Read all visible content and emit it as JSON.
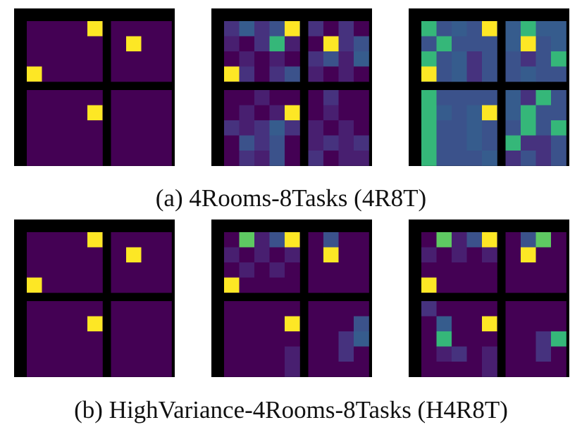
{
  "figure": {
    "rows": [
      {
        "caption": "(a) 4Rooms-8Tasks (4R8T)",
        "panels": [
          {
            "colors": [
              "#440154",
              "#440154",
              "#440154",
              "#440154",
              "#440154",
              "#440154",
              "#440154",
              "#440154",
              "#440154",
              "#440154",
              "#440154",
              "#440154",
              "#440154",
              "#440154",
              "#440154",
              "#440154",
              "#440154",
              "#440154",
              "#440154",
              "#440154",
              "#440154",
              "#440154",
              "#440154",
              "#440154",
              "#440154",
              "#440154",
              "#440154",
              "#440154",
              "#440154",
              "#440154",
              "#440154",
              "#440154",
              "#440154",
              "#440154",
              "#440154",
              "#440154",
              "#440154",
              "#440154",
              "#440154",
              "#440154",
              "#440154",
              "#440154",
              "#440154",
              "#440154",
              "#440154",
              "#440154",
              "#440154",
              "#440154",
              "#440154",
              "#440154",
              "#440154",
              "#440154",
              "#440154",
              "#440154",
              "#440154",
              "#440154",
              "#440154",
              "#440154",
              "#440154",
              "#440154",
              "#440154",
              "#440154",
              "#440154",
              "#440154",
              "#440154",
              "#440154",
              "#440154",
              "#440154",
              "#440154",
              "#440154",
              "#440154",
              "#440154",
              "#440154",
              "#440154",
              "#440154",
              "#440154",
              "#440154",
              "#440154",
              "#440154",
              "#440154",
              "#440154"
            ],
            "goals": [
              [
                0,
                4
              ],
              [
                1,
                6
              ],
              [
                3,
                0
              ],
              [
                5,
                4
              ]
            ]
          },
          {
            "colors": [
              "#46327e",
              "#365c8d",
              "#46327e",
              "#3b528b",
              "#365c8d",
              "#46327e",
              "#440154",
              "#46327e",
              "#440154",
              "#481f70",
              "#440154",
              "#46327e",
              "#35b779",
              "#481f70",
              "#440154",
              "#3b528b",
              "#46327e",
              "#3b528b",
              "#440154",
              "#481f70",
              "#440154",
              "#481f70",
              "#440154",
              "#46327e",
              "#3b528b",
              "#481f70",
              "#365c8d",
              "#481f70",
              "#46327e",
              "#440154",
              "#46327e",
              "#3b528b",
              "#481f70",
              "#440154",
              "#481f70",
              "#440154",
              "#440154",
              "#440154",
              "#481f70",
              "#440154",
              "#440154",
              "#440154",
              "#46327e",
              "#440154",
              "#440154",
              "#440154",
              "#481f70",
              "#440154",
              "#481f70",
              "#46327e",
              "#440154",
              "#481f70",
              "#440154",
              "#440154",
              "#46327e",
              "#481f70",
              "#46327e",
              "#365c8d",
              "#46327e",
              "#481f70",
              "#440154",
              "#481f70",
              "#440154",
              "#440154",
              "#3b528b",
              "#46327e",
              "#3b528b",
              "#440154",
              "#481f70",
              "#46327e",
              "#481f70",
              "#46327e",
              "#440154",
              "#46327e",
              "#481f70",
              "#3b528b",
              "#440154",
              "#46327e",
              "#440154",
              "#481f70",
              "#481f70"
            ],
            "goals": [
              [
                0,
                4
              ],
              [
                1,
                6
              ],
              [
                3,
                0
              ],
              [
                5,
                4
              ]
            ]
          },
          {
            "colors": [
              "#35b779",
              "#3b528b",
              "#365c8d",
              "#3b528b",
              "#3b528b",
              "#365c8d",
              "#35b779",
              "#365c8d",
              "#365c8d",
              "#3b528b",
              "#35b779",
              "#3b528b",
              "#3b528b",
              "#3b528b",
              "#365c8d",
              "#3b528b",
              "#3b528b",
              "#365c8d",
              "#35b779",
              "#3b528b",
              "#365c8d",
              "#46327e",
              "#3b528b",
              "#3b528b",
              "#46327e",
              "#3b528b",
              "#35b779",
              "#3b528b",
              "#3b528b",
              "#365c8d",
              "#46327e",
              "#3b528b",
              "#3b528b",
              "#365c8d",
              "#3b528b",
              "#3b528b",
              "#35b779",
              "#3b528b",
              "#3b528b",
              "#3b528b",
              "#3b528b",
              "#365c8d",
              "#46327e",
              "#35b779",
              "#3b528b",
              "#35b779",
              "#365c8d",
              "#3b528b",
              "#365c8d",
              "#3b528b",
              "#365c8d",
              "#35b779",
              "#3b528b",
              "#3b528b",
              "#35b779",
              "#3b528b",
              "#3b528b",
              "#365c8d",
              "#3b528b",
              "#3b528b",
              "#35b779",
              "#3b528b",
              "#35b779",
              "#35b779",
              "#3b528b",
              "#3b528b",
              "#365c8d",
              "#3b528b",
              "#35b779",
              "#46327e",
              "#46327e",
              "#3b528b",
              "#35b779",
              "#3b528b",
              "#3b528b",
              "#3b528b",
              "#365c8d",
              "#46327e",
              "#3b528b",
              "#46327e",
              "#3b528b"
            ],
            "goals": [
              [
                0,
                4
              ],
              [
                1,
                6
              ],
              [
                3,
                0
              ],
              [
                5,
                4
              ]
            ]
          }
        ]
      },
      {
        "caption": "(b) HighVariance-4Rooms-8Tasks (H4R8T)",
        "panels": [
          {
            "colors": [
              "#440154",
              "#440154",
              "#440154",
              "#440154",
              "#440154",
              "#440154",
              "#440154",
              "#440154",
              "#440154",
              "#440154",
              "#440154",
              "#440154",
              "#440154",
              "#440154",
              "#440154",
              "#440154",
              "#440154",
              "#440154",
              "#440154",
              "#440154",
              "#440154",
              "#440154",
              "#440154",
              "#440154",
              "#440154",
              "#440154",
              "#440154",
              "#440154",
              "#440154",
              "#440154",
              "#440154",
              "#440154",
              "#440154",
              "#440154",
              "#440154",
              "#440154",
              "#440154",
              "#440154",
              "#440154",
              "#440154",
              "#440154",
              "#440154",
              "#440154",
              "#440154",
              "#440154",
              "#440154",
              "#440154",
              "#440154",
              "#440154",
              "#440154",
              "#440154",
              "#440154",
              "#440154",
              "#440154",
              "#440154",
              "#440154",
              "#440154",
              "#440154",
              "#440154",
              "#440154",
              "#440154",
              "#440154",
              "#440154",
              "#440154",
              "#440154",
              "#440154",
              "#440154",
              "#440154",
              "#440154",
              "#440154",
              "#440154",
              "#440154",
              "#440154",
              "#440154",
              "#440154",
              "#440154",
              "#440154",
              "#440154",
              "#440154",
              "#440154",
              "#440154"
            ],
            "goals": [
              [
                0,
                4
              ],
              [
                1,
                6
              ],
              [
                3,
                0
              ],
              [
                5,
                4
              ]
            ]
          },
          {
            "colors": [
              "#440154",
              "#5ec962",
              "#481f70",
              "#3b528b",
              "#481f70",
              "#440154",
              "#3b528b",
              "#440154",
              "#440154",
              "#481f70",
              "#440154",
              "#481f70",
              "#440154",
              "#481f70",
              "#440154",
              "#440154",
              "#440154",
              "#440154",
              "#440154",
              "#481f70",
              "#440154",
              "#481f70",
              "#440154",
              "#440154",
              "#440154",
              "#440154",
              "#440154",
              "#440154",
              "#440154",
              "#440154",
              "#440154",
              "#440154",
              "#440154",
              "#440154",
              "#440154",
              "#440154",
              "#440154",
              "#440154",
              "#440154",
              "#440154",
              "#440154",
              "#440154",
              "#440154",
              "#440154",
              "#440154",
              "#440154",
              "#440154",
              "#440154",
              "#440154",
              "#46327e",
              "#440154",
              "#440154",
              "#440154",
              "#3b528b",
              "#440154",
              "#440154",
              "#440154",
              "#440154",
              "#440154",
              "#440154",
              "#440154",
              "#46327e",
              "#365c8d",
              "#440154",
              "#440154",
              "#440154",
              "#440154",
              "#481f70",
              "#440154",
              "#440154",
              "#46327e",
              "#440154",
              "#440154",
              "#440154",
              "#440154",
              "#440154",
              "#481f70",
              "#440154",
              "#440154",
              "#440154",
              "#440154"
            ],
            "goals": [
              [
                0,
                4
              ],
              [
                1,
                6
              ],
              [
                3,
                0
              ],
              [
                5,
                4
              ]
            ]
          },
          {
            "colors": [
              "#440154",
              "#5ec962",
              "#481f70",
              "#3b528b",
              "#481f70",
              "#440154",
              "#3b528b",
              "#5ec962",
              "#440154",
              "#481f70",
              "#440154",
              "#481f70",
              "#440154",
              "#481f70",
              "#440154",
              "#3b528b",
              "#440154",
              "#440154",
              "#440154",
              "#440154",
              "#440154",
              "#440154",
              "#440154",
              "#440154",
              "#440154",
              "#440154",
              "#440154",
              "#440154",
              "#440154",
              "#440154",
              "#440154",
              "#440154",
              "#440154",
              "#440154",
              "#440154",
              "#440154",
              "#46327e",
              "#440154",
              "#440154",
              "#440154",
              "#440154",
              "#440154",
              "#440154",
              "#440154",
              "#440154",
              "#440154",
              "#365c8d",
              "#440154",
              "#440154",
              "#440154",
              "#440154",
              "#440154",
              "#440154",
              "#440154",
              "#440154",
              "#35b779",
              "#440154",
              "#440154",
              "#440154",
              "#440154",
              "#440154",
              "#46327e",
              "#35b779",
              "#440154",
              "#481f70",
              "#46327e",
              "#440154",
              "#481f70",
              "#440154",
              "#440154",
              "#46327e",
              "#440154",
              "#440154",
              "#440154",
              "#440154",
              "#440154",
              "#481f70",
              "#440154",
              "#440154",
              "#440154",
              "#440154"
            ],
            "goals": [
              [
                0,
                4
              ],
              [
                1,
                6
              ],
              [
                3,
                0
              ],
              [
                5,
                4
              ]
            ]
          }
        ]
      }
    ]
  }
}
